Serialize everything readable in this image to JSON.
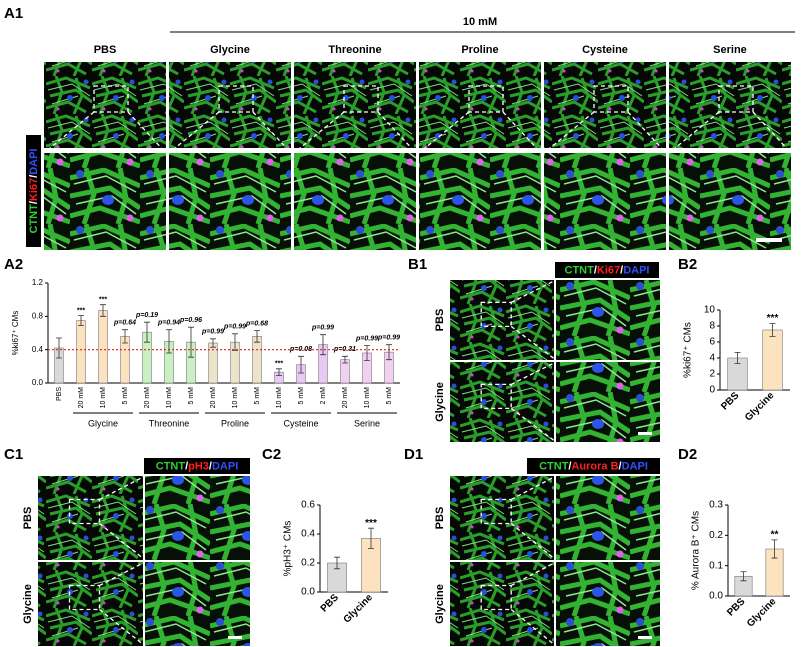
{
  "panels": {
    "a1": {
      "label": "A1",
      "concentration": "10 mM",
      "columns": [
        "PBS",
        "Glycine",
        "Threonine",
        "Proline",
        "Cysteine",
        "Serine"
      ],
      "stain": [
        "CTNT",
        "/",
        "Ki67",
        "/",
        "DAPI"
      ]
    },
    "b1": {
      "label": "B1",
      "rows": [
        "PBS",
        "Glycine"
      ],
      "stain": [
        "CTNT",
        "/",
        "Ki67",
        "/",
        "DAPI"
      ]
    },
    "c1": {
      "label": "C1",
      "rows": [
        "PBS",
        "Glycine"
      ],
      "stain": [
        "CTNT",
        "/",
        "pH3",
        "/",
        "DAPI"
      ]
    },
    "d1": {
      "label": "D1",
      "rows": [
        "PBS",
        "Glycine"
      ],
      "stain": [
        "CTNT",
        "/",
        "Aurora B",
        "/",
        "DAPI"
      ]
    }
  },
  "chart_data": [
    {
      "type": "bar",
      "label": "A2",
      "ylabel": "%ki67⁺ CMs",
      "categories": [
        "PBS",
        "20 mM",
        "10 mM",
        "5 mM",
        "20 mM",
        "10 mM",
        "5 mM",
        "20 mM",
        "10 mM",
        "5 mM",
        "10 mM",
        "5 mM",
        "2 mM",
        "20 mM",
        "10 mM",
        "5 mM"
      ],
      "groups": [
        "Glycine",
        "Threonine",
        "Proline",
        "Cysteine",
        "Serine"
      ],
      "values": [
        0.42,
        0.75,
        0.87,
        0.56,
        0.61,
        0.5,
        0.49,
        0.48,
        0.49,
        0.56,
        0.13,
        0.22,
        0.46,
        0.28,
        0.36,
        0.37
      ],
      "errors": [
        0.12,
        0.06,
        0.07,
        0.08,
        0.12,
        0.14,
        0.18,
        0.05,
        0.1,
        0.07,
        0.04,
        0.1,
        0.12,
        0.04,
        0.09,
        0.09
      ],
      "significance": [
        null,
        "***",
        "***",
        "p=0.64",
        "p=0.19",
        "p=0.94",
        "p=0.96",
        "p=0.99",
        "p=0.99",
        "p=0.68",
        "***",
        "p=0.08",
        "p=0.99",
        "p=0.31",
        "p=0.99",
        "p=0.99"
      ],
      "colors": [
        "#d9d9d9",
        "#fde2c0",
        "#fde2c0",
        "#fde2c0",
        "#c8f0c0",
        "#c8f0c0",
        "#c8f0c0",
        "#ece3c8",
        "#ece3c8",
        "#ece3c8",
        "#e8c8f4",
        "#e8c8f4",
        "#e8c8f4",
        "#f4cff4",
        "#f4cff4",
        "#f4cff4"
      ],
      "ylim": [
        0,
        1.2
      ],
      "yticks": [
        {
          "value": 0,
          "label": "0.0"
        },
        0.4,
        0.8,
        1.2
      ],
      "refline": {
        "value": 0.4,
        "color": "#e02020"
      }
    },
    {
      "type": "bar",
      "label": "B2",
      "ylabel": "%ki67⁺ CMs",
      "categories": [
        "PBS",
        "Glycine"
      ],
      "values": [
        4.0,
        7.5
      ],
      "errors": [
        0.7,
        0.8
      ],
      "significance": [
        null,
        "***"
      ],
      "colors": [
        "#d9d9d9",
        "#fde2c0"
      ],
      "ylim": [
        0,
        10
      ],
      "yticks": [
        0,
        2,
        4,
        6,
        8,
        10
      ]
    },
    {
      "type": "bar",
      "label": "C2",
      "ylabel": "%pH3⁺ CMs",
      "categories": [
        "PBS",
        "Glycine"
      ],
      "values": [
        0.2,
        0.37
      ],
      "errors": [
        0.04,
        0.07
      ],
      "significance": [
        null,
        "***"
      ],
      "colors": [
        "#d9d9d9",
        "#fde2c0"
      ],
      "ylim": [
        0,
        0.6
      ],
      "yticks": [
        {
          "value": 0,
          "label": "0.0"
        },
        0.2,
        0.4,
        0.6
      ]
    },
    {
      "type": "bar",
      "label": "D2",
      "ylabel": "% Aurora B⁺ CMs",
      "categories": [
        "PBS",
        "Glycine"
      ],
      "values": [
        0.065,
        0.155
      ],
      "errors": [
        0.015,
        0.03
      ],
      "significance": [
        null,
        "**"
      ],
      "colors": [
        "#d9d9d9",
        "#fde2c0"
      ],
      "ylim": [
        0,
        0.3
      ],
      "yticks": [
        {
          "value": 0,
          "label": "0.0"
        },
        0.1,
        0.2,
        0.3
      ]
    }
  ]
}
